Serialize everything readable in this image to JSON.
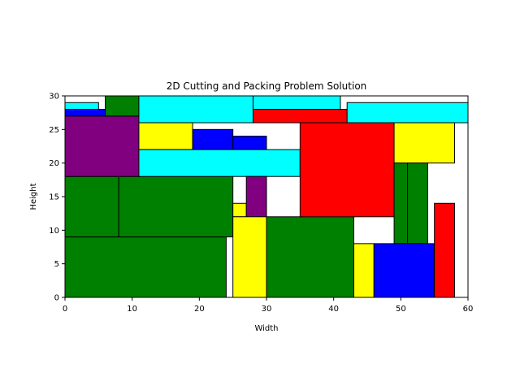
{
  "chart_data": {
    "type": "rectangles",
    "title": "2D Cutting and Packing Problem Solution",
    "xlabel": "Width",
    "ylabel": "Height",
    "xlim": [
      0,
      60
    ],
    "ylim": [
      0,
      30
    ],
    "xticks": [
      0,
      10,
      20,
      30,
      40,
      50,
      60
    ],
    "yticks": [
      0,
      5,
      10,
      15,
      20,
      25,
      30
    ],
    "grid": false,
    "rects": [
      {
        "x": 0,
        "y": 0,
        "w": 24,
        "h": 9,
        "color": "#008000"
      },
      {
        "x": 0,
        "y": 9,
        "w": 8,
        "h": 9,
        "color": "#008000"
      },
      {
        "x": 8,
        "y": 9,
        "w": 17,
        "h": 9,
        "color": "#008000"
      },
      {
        "x": 0,
        "y": 18,
        "w": 11,
        "h": 9,
        "color": "#800080"
      },
      {
        "x": 0,
        "y": 27,
        "w": 6,
        "h": 1,
        "color": "#0000ff"
      },
      {
        "x": 0,
        "y": 28,
        "w": 5,
        "h": 1,
        "color": "#00ffff"
      },
      {
        "x": 6,
        "y": 27,
        "w": 5,
        "h": 3,
        "color": "#008000"
      },
      {
        "x": 11,
        "y": 26,
        "w": 17,
        "h": 4,
        "color": "#00ffff"
      },
      {
        "x": 11,
        "y": 22,
        "w": 8,
        "h": 4,
        "color": "#ffff00"
      },
      {
        "x": 19,
        "y": 22,
        "w": 6,
        "h": 3,
        "color": "#0000ff"
      },
      {
        "x": 25,
        "y": 22,
        "w": 5,
        "h": 2,
        "color": "#0000ff"
      },
      {
        "x": 11,
        "y": 18,
        "w": 24,
        "h": 4,
        "color": "#00ffff"
      },
      {
        "x": 25,
        "y": 12,
        "w": 2,
        "h": 2,
        "color": "#ffff00"
      },
      {
        "x": 27,
        "y": 12,
        "w": 3,
        "h": 6,
        "color": "#800080"
      },
      {
        "x": 25,
        "y": 0,
        "w": 5,
        "h": 12,
        "color": "#ffff00"
      },
      {
        "x": 30,
        "y": 0,
        "w": 13,
        "h": 12,
        "color": "#008000"
      },
      {
        "x": 28,
        "y": 28,
        "w": 13,
        "h": 2,
        "color": "#00ffff"
      },
      {
        "x": 28,
        "y": 26,
        "w": 14,
        "h": 2,
        "color": "#ff0000"
      },
      {
        "x": 42,
        "y": 26,
        "w": 18,
        "h": 3,
        "color": "#00ffff"
      },
      {
        "x": 35,
        "y": 12,
        "w": 14,
        "h": 14,
        "color": "#ff0000"
      },
      {
        "x": 49,
        "y": 20,
        "w": 9,
        "h": 6,
        "color": "#ffff00"
      },
      {
        "x": 49,
        "y": 8,
        "w": 2,
        "h": 12,
        "color": "#008000"
      },
      {
        "x": 51,
        "y": 8,
        "w": 3,
        "h": 12,
        "color": "#008000"
      },
      {
        "x": 43,
        "y": 0,
        "w": 3,
        "h": 8,
        "color": "#ffff00"
      },
      {
        "x": 46,
        "y": 0,
        "w": 9,
        "h": 8,
        "color": "#0000ff"
      },
      {
        "x": 55,
        "y": 0,
        "w": 3,
        "h": 14,
        "color": "#ff0000"
      }
    ]
  }
}
